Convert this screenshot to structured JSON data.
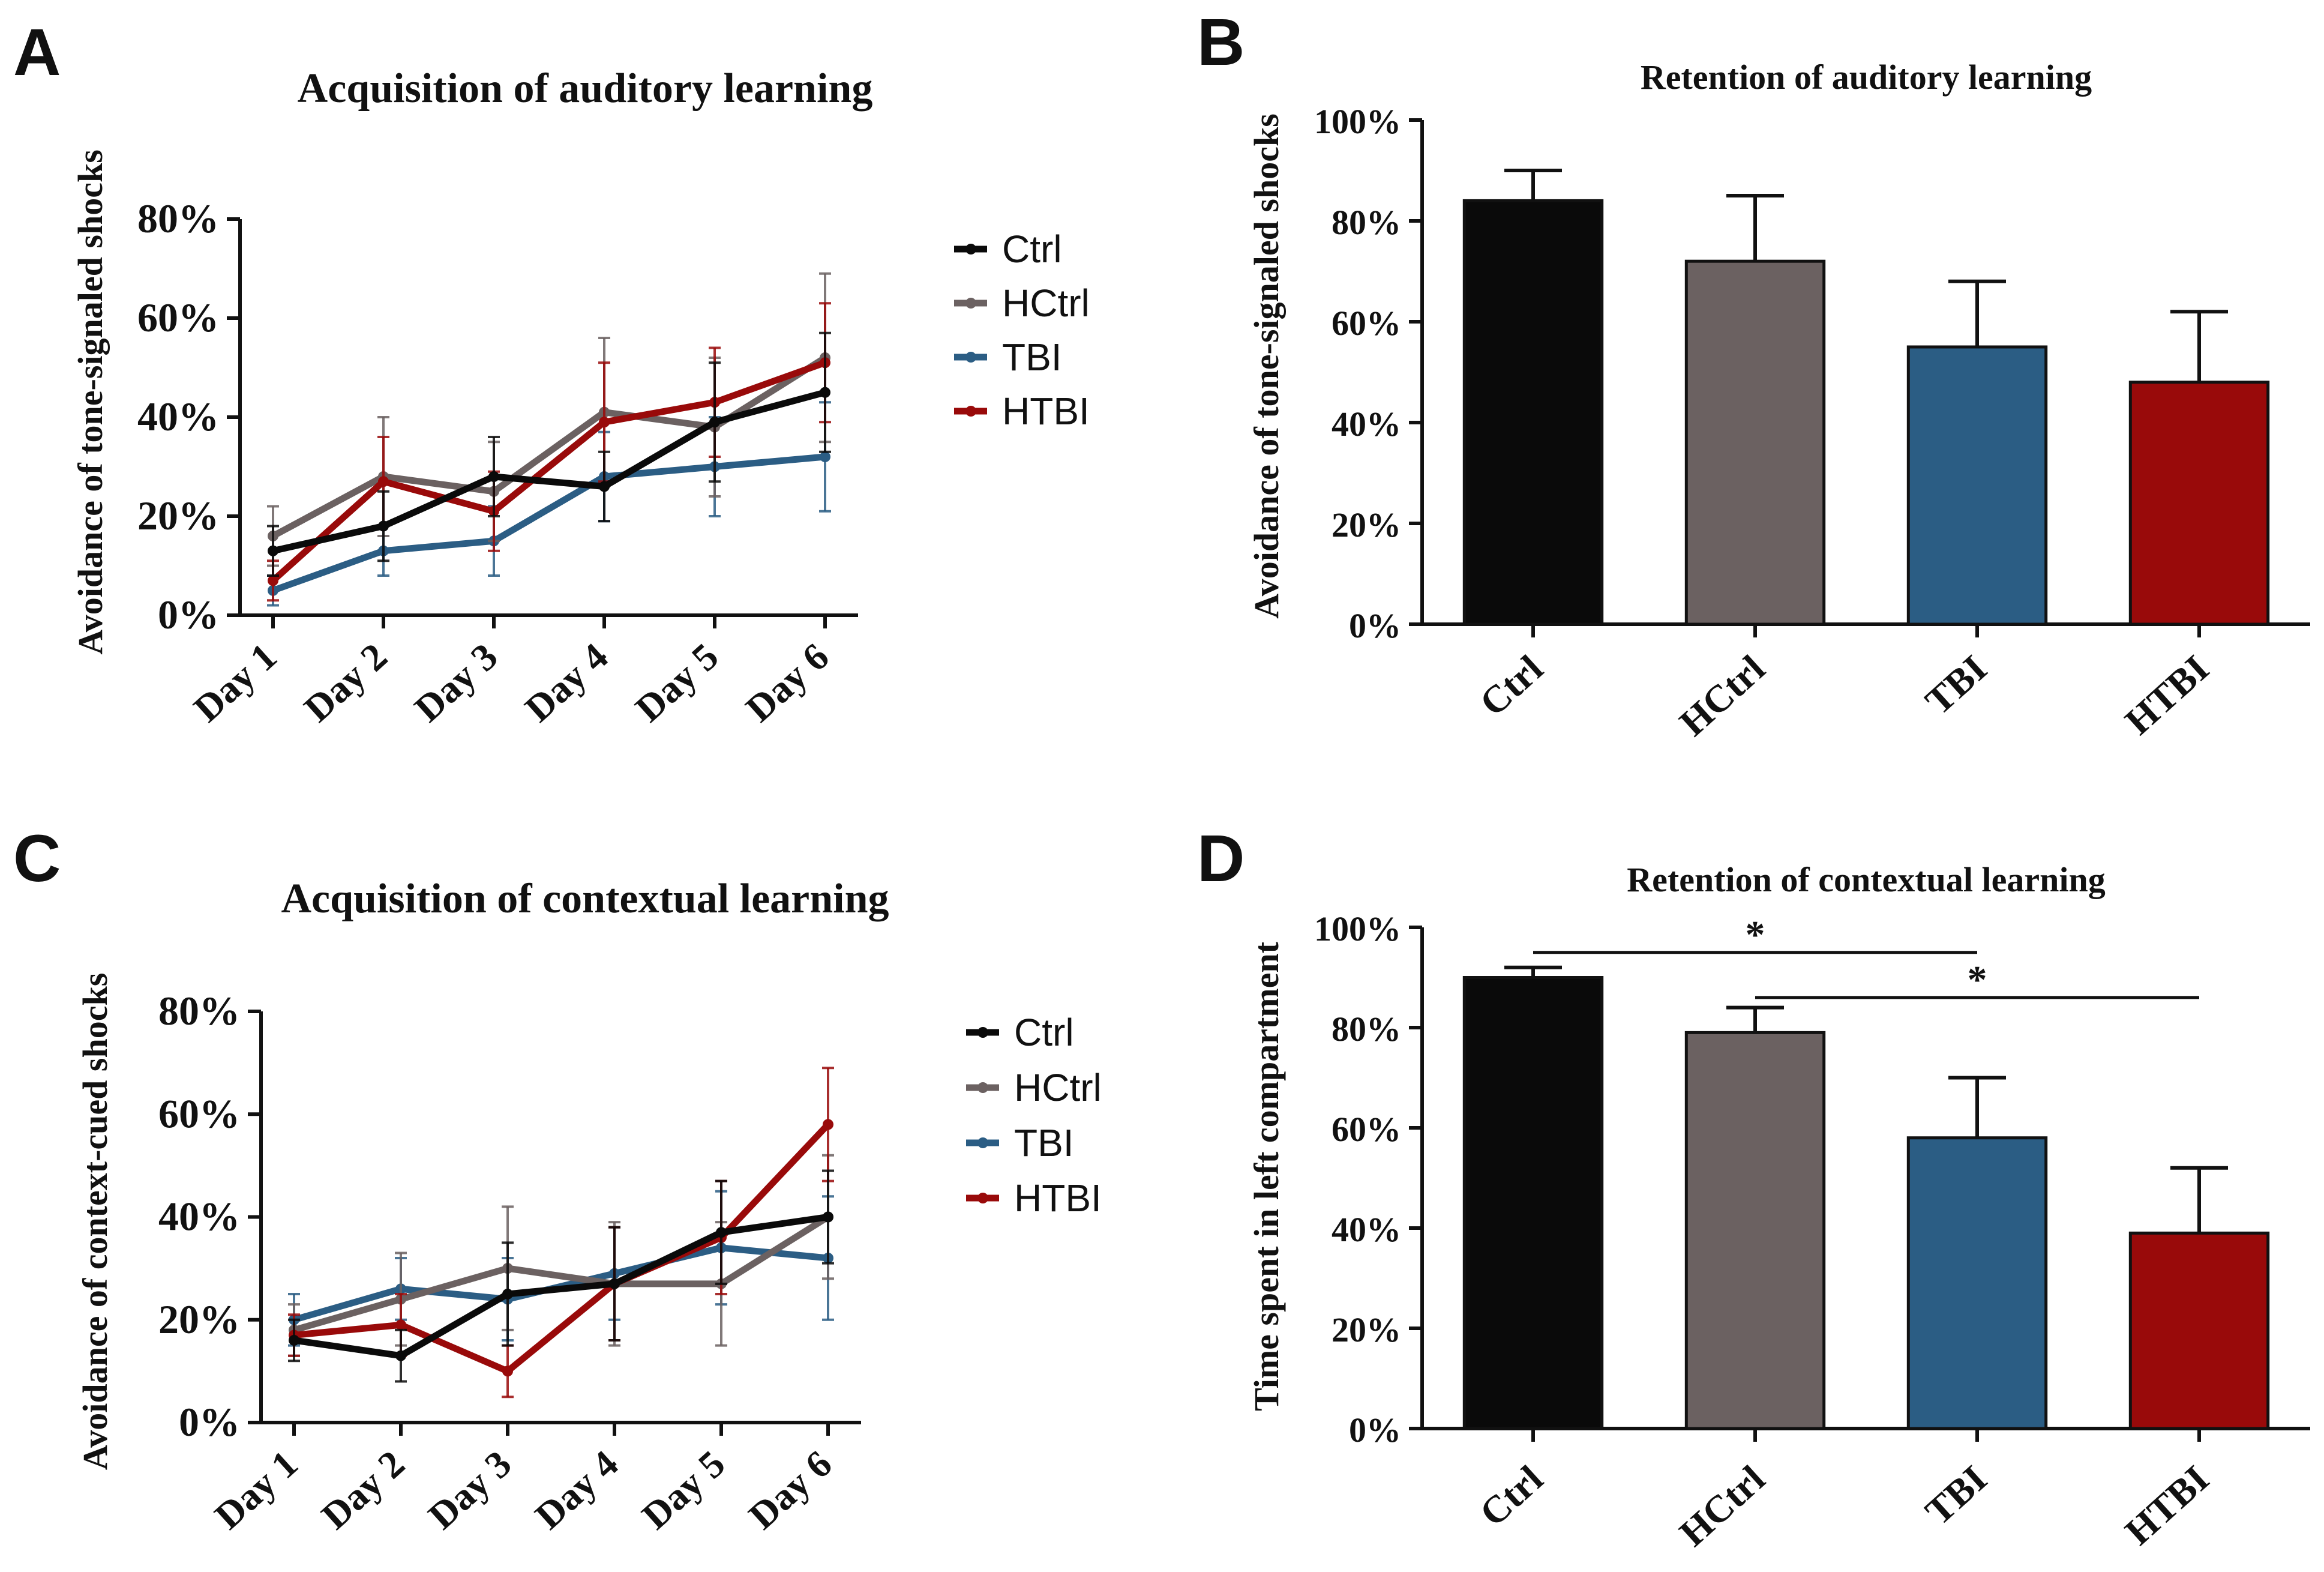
{
  "panels": {
    "a": "A",
    "b": "B",
    "c": "C",
    "d": "D"
  },
  "chart_data": [
    {
      "id": "A",
      "type": "line",
      "title": "Acquisition of auditory learning",
      "ylabel": "Avoidance of tone-signaled shocks",
      "xlabel": "",
      "categories": [
        "Day 1",
        "Day 2",
        "Day 3",
        "Day 4",
        "Day 5",
        "Day 6"
      ],
      "ylim": [
        0,
        80
      ],
      "yticks": [
        "0%",
        "20%",
        "40%",
        "60%",
        "80%"
      ],
      "series": [
        {
          "name": "Ctrl",
          "color": "#0a0a0a",
          "values": [
            13,
            18,
            28,
            26,
            39,
            45
          ],
          "errors": [
            5,
            7,
            8,
            7,
            12,
            12
          ]
        },
        {
          "name": "HCtrl",
          "color": "#6b6161",
          "values": [
            16,
            28,
            25,
            41,
            38,
            52
          ],
          "errors": [
            6,
            12,
            10,
            15,
            14,
            17
          ]
        },
        {
          "name": "TBI",
          "color": "#2b5d84",
          "values": [
            5,
            13,
            15,
            28,
            30,
            32
          ],
          "errors": [
            3,
            5,
            7,
            9,
            10,
            11
          ]
        },
        {
          "name": "HTBI",
          "color": "#990a0a",
          "values": [
            7,
            27,
            21,
            39,
            43,
            51
          ],
          "errors": [
            4,
            9,
            8,
            12,
            11,
            12
          ]
        }
      ]
    },
    {
      "id": "B",
      "type": "bar",
      "title": "Retention of auditory learning",
      "ylabel": "Avoidance of tone-signaled shocks",
      "xlabel": "",
      "categories": [
        "Ctrl",
        "HCtrl",
        "TBI",
        "HTBI"
      ],
      "values": [
        84,
        72,
        55,
        48
      ],
      "errors": [
        6,
        13,
        13,
        14
      ],
      "colors": [
        "#0a0a0a",
        "#6b6161",
        "#2b5d84",
        "#990a0a"
      ],
      "ylim": [
        0,
        100
      ],
      "yticks": [
        "0%",
        "20%",
        "40%",
        "60%",
        "80%",
        "100%"
      ]
    },
    {
      "id": "C",
      "type": "line",
      "title": "Acquisition of contextual learning",
      "ylabel": "Avoidance of context-cued shocks",
      "xlabel": "",
      "categories": [
        "Day 1",
        "Day 2",
        "Day 3",
        "Day 4",
        "Day 5",
        "Day 6"
      ],
      "ylim": [
        0,
        80
      ],
      "yticks": [
        "0%",
        "20%",
        "40%",
        "60%",
        "80%"
      ],
      "series": [
        {
          "name": "Ctrl",
          "color": "#0a0a0a",
          "values": [
            16,
            13,
            25,
            27,
            37,
            40
          ],
          "errors": [
            4,
            5,
            10,
            11,
            10,
            9
          ]
        },
        {
          "name": "HCtrl",
          "color": "#6b6161",
          "values": [
            18,
            24,
            30,
            27,
            27,
            40
          ],
          "errors": [
            5,
            9,
            12,
            12,
            12,
            12
          ]
        },
        {
          "name": "TBI",
          "color": "#2b5d84",
          "values": [
            20,
            26,
            24,
            29,
            34,
            32
          ],
          "errors": [
            5,
            6,
            8,
            9,
            11,
            12
          ]
        },
        {
          "name": "HTBI",
          "color": "#990a0a",
          "values": [
            17,
            19,
            10,
            27,
            36,
            58
          ],
          "errors": [
            4,
            6,
            5,
            11,
            11,
            11
          ]
        }
      ]
    },
    {
      "id": "D",
      "type": "bar",
      "title": "Retention of contextual learning",
      "ylabel": "Time spent in left compartment",
      "xlabel": "",
      "categories": [
        "Ctrl",
        "HCtrl",
        "TBI",
        "HTBI"
      ],
      "values": [
        90,
        79,
        58,
        39
      ],
      "errors": [
        2,
        5,
        12,
        13
      ],
      "colors": [
        "#0a0a0a",
        "#6b6161",
        "#2b5d84",
        "#990a0a"
      ],
      "ylim": [
        0,
        100
      ],
      "yticks": [
        "0%",
        "20%",
        "40%",
        "60%",
        "80%",
        "100%"
      ],
      "significance": [
        {
          "from": "Ctrl",
          "to": "TBI",
          "label": "*",
          "level": 95
        },
        {
          "from": "HCtrl",
          "to": "HTBI",
          "label": "*",
          "level": 86
        }
      ]
    }
  ]
}
